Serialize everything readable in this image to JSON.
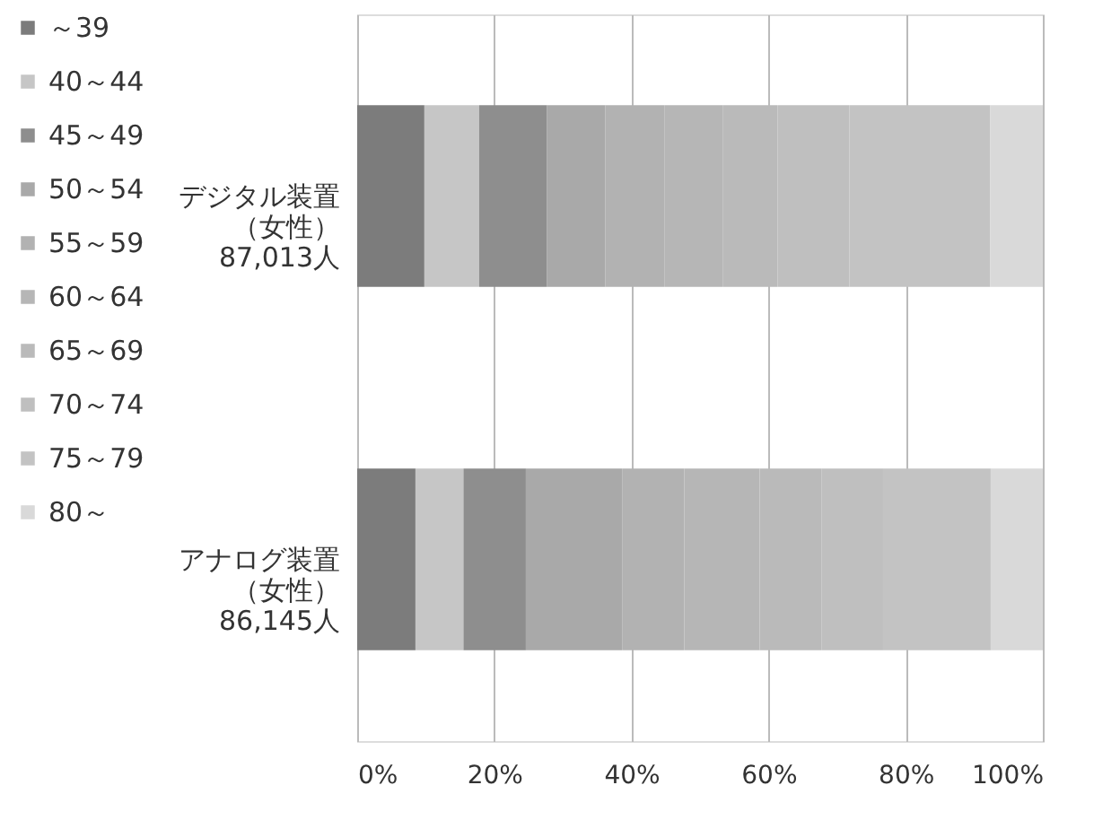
{
  "chart_data": {
    "type": "bar",
    "orientation": "horizontal",
    "stacked": true,
    "categories": [
      "デジタル装置（女性）\n87,013人",
      "アナログ装置（女性）\n86,145人"
    ],
    "series": [
      {
        "name": "～39",
        "color": "#7c7c7c",
        "values": [
          9.8,
          8.5
        ]
      },
      {
        "name": "40～44",
        "color": "#c6c6c6",
        "values": [
          8.0,
          7.0
        ]
      },
      {
        "name": "45～49",
        "color": "#8e8e8e",
        "values": [
          9.9,
          9.1
        ]
      },
      {
        "name": "50～54",
        "color": "#a9a9a9",
        "values": [
          8.5,
          14.1
        ]
      },
      {
        "name": "55～59",
        "color": "#b2b2b2",
        "values": [
          8.6,
          9.0
        ]
      },
      {
        "name": "60～64",
        "color": "#b6b6b6",
        "values": [
          8.5,
          11.0
        ]
      },
      {
        "name": "65～69",
        "color": "#bababa",
        "values": [
          8.0,
          9.0
        ]
      },
      {
        "name": "70～74",
        "color": "#bfbfbf",
        "values": [
          10.5,
          9.0
        ]
      },
      {
        "name": "75～79",
        "color": "#c3c3c3",
        "values": [
          20.5,
          15.7
        ]
      },
      {
        "name": "80～",
        "color": "#d9d9d9",
        "values": [
          7.7,
          7.6
        ]
      }
    ],
    "xlim": [
      0,
      100
    ],
    "xticks": [
      {
        "value": 0,
        "label": "0%"
      },
      {
        "value": 20,
        "label": "20%"
      },
      {
        "value": 40,
        "label": "40%"
      },
      {
        "value": 60,
        "label": "60%"
      },
      {
        "value": 80,
        "label": "80%"
      },
      {
        "value": 100,
        "label": "100%"
      }
    ],
    "grid": "x",
    "legend": "left"
  }
}
